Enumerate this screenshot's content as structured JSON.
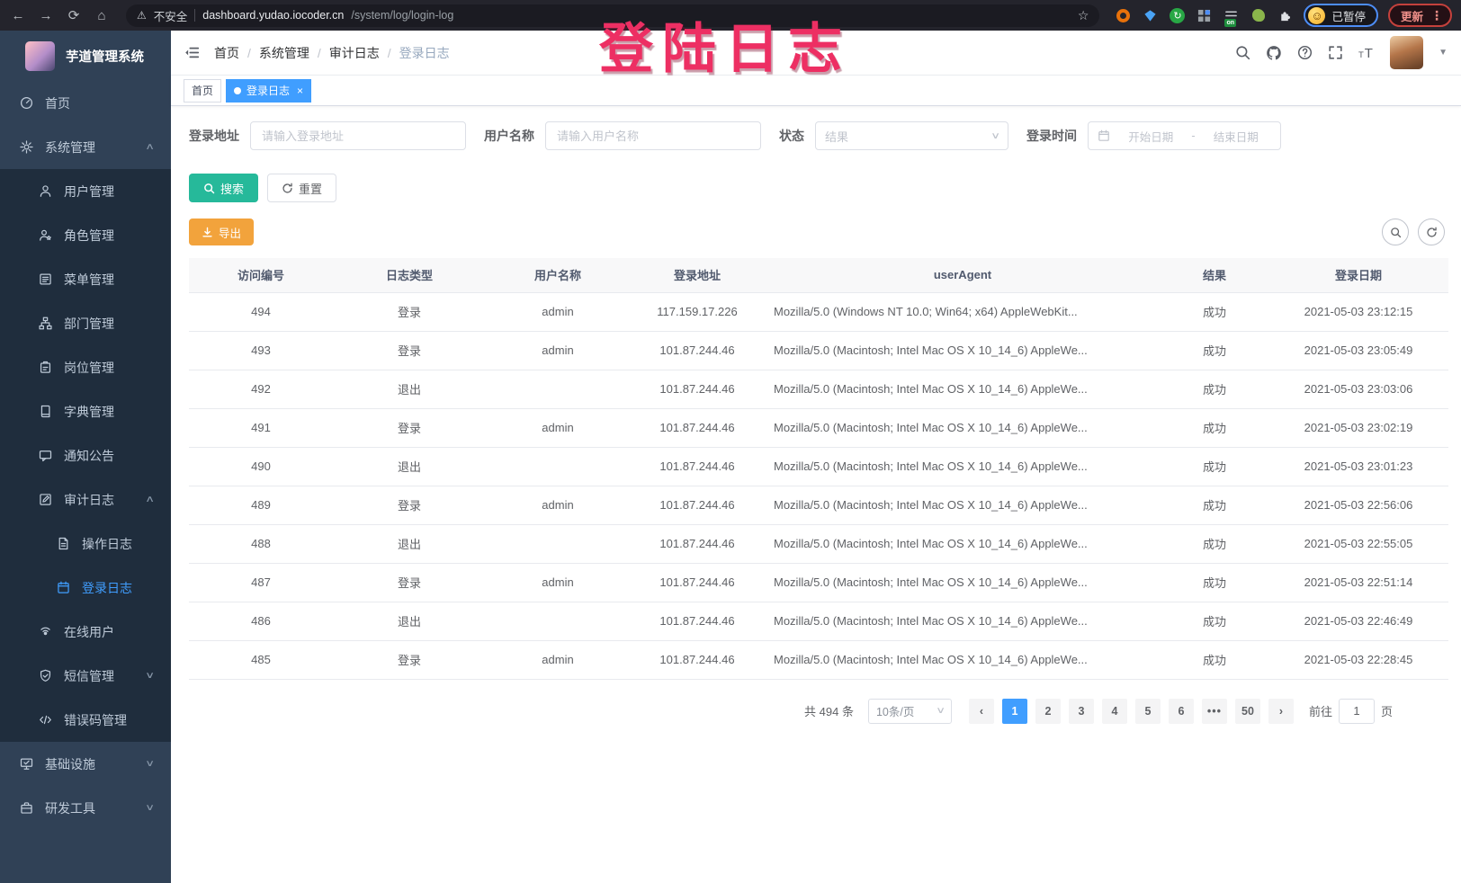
{
  "colors": {
    "accent": "#409eff",
    "sidebar_bg": "#304156",
    "submenu_bg": "#1f2d3d",
    "search_button": "#26b99a",
    "export_button": "#f2a33c",
    "overlay_text": "#ed2f63"
  },
  "overlay": {
    "text": "登陆日志"
  },
  "browser": {
    "security_label": "不安全",
    "url_domain": "dashboard.yudao.iocoder.cn",
    "url_path": "/system/log/login-log",
    "paused_label": "已暂停",
    "update_label": "更新",
    "extension_badge": "on",
    "extension_icons": [
      "orange-ring-extension-icon",
      "blue-shield-extension-icon",
      "green-circle-extension-icon",
      "grid-extension-icon",
      "list-on-extension-icon",
      "green-leaf-extension-icon",
      "puzzle-extensions-icon"
    ]
  },
  "sidebar": {
    "title": "芋道管理系统",
    "items": [
      {
        "id": "home",
        "label": "首页",
        "icon": "dashboard-icon",
        "level": 1
      },
      {
        "id": "system",
        "label": "系统管理",
        "icon": "gear-icon",
        "level": 1,
        "caret": "up"
      },
      {
        "id": "user-mgmt",
        "label": "用户管理",
        "icon": "user-icon",
        "level": 2
      },
      {
        "id": "role-mgmt",
        "label": "角色管理",
        "icon": "role-icon",
        "level": 2
      },
      {
        "id": "menu-mgmt",
        "label": "菜单管理",
        "icon": "menu-list-icon",
        "level": 2
      },
      {
        "id": "dept-mgmt",
        "label": "部门管理",
        "icon": "org-tree-icon",
        "level": 2
      },
      {
        "id": "post-mgmt",
        "label": "岗位管理",
        "icon": "badge-icon",
        "level": 2
      },
      {
        "id": "dict-mgmt",
        "label": "字典管理",
        "icon": "dictionary-icon",
        "level": 2
      },
      {
        "id": "notice",
        "label": "通知公告",
        "icon": "announcement-icon",
        "level": 2
      },
      {
        "id": "audit-log",
        "label": "审计日志",
        "icon": "audit-log-icon",
        "level": 2,
        "caret": "up"
      },
      {
        "id": "operation-log",
        "label": "操作日志",
        "icon": "operation-log-icon",
        "level": 3
      },
      {
        "id": "login-log",
        "label": "登录日志",
        "icon": "login-log-icon",
        "level": 3,
        "active": true
      },
      {
        "id": "online-users",
        "label": "在线用户",
        "icon": "online-users-icon",
        "level": 2
      },
      {
        "id": "sms-mgmt",
        "label": "短信管理",
        "icon": "sms-shield-icon",
        "level": 2,
        "caret": "down"
      },
      {
        "id": "error-code",
        "label": "错误码管理",
        "icon": "error-code-icon",
        "level": 2
      },
      {
        "id": "infra",
        "label": "基础设施",
        "icon": "infrastructure-icon",
        "level": 1,
        "caret": "down"
      },
      {
        "id": "dev-tools",
        "label": "研发工具",
        "icon": "dev-tools-icon",
        "level": 1,
        "caret": "down"
      }
    ]
  },
  "header": {
    "breadcrumb": [
      "首页",
      "系统管理",
      "审计日志",
      "登录日志"
    ],
    "right_icons": [
      "search-icon",
      "github-icon",
      "help-icon",
      "fullscreen-icon",
      "font-size-icon"
    ]
  },
  "tabs": [
    {
      "label": "首页",
      "active": false,
      "closable": false
    },
    {
      "label": "登录日志",
      "active": true,
      "closable": true
    }
  ],
  "filters": {
    "login_address_label": "登录地址",
    "login_address_placeholder": "请输入登录地址",
    "username_label": "用户名称",
    "username_placeholder": "请输入用户名称",
    "status_label": "状态",
    "status_placeholder": "结果",
    "login_time_label": "登录时间",
    "date_start_placeholder": "开始日期",
    "date_separator": "-",
    "date_end_placeholder": "结束日期",
    "search_label": "搜索",
    "reset_label": "重置",
    "export_label": "导出"
  },
  "table": {
    "columns": [
      "访问编号",
      "日志类型",
      "用户名称",
      "登录地址",
      "userAgent",
      "结果",
      "登录日期"
    ],
    "rows": [
      [
        "494",
        "登录",
        "admin",
        "117.159.17.226",
        "Mozilla/5.0 (Windows NT 10.0; Win64; x64) AppleWebKit...",
        "成功",
        "2021-05-03 23:12:15"
      ],
      [
        "493",
        "登录",
        "admin",
        "101.87.244.46",
        "Mozilla/5.0 (Macintosh; Intel Mac OS X 10_14_6) AppleWe...",
        "成功",
        "2021-05-03 23:05:49"
      ],
      [
        "492",
        "退出",
        "",
        "101.87.244.46",
        "Mozilla/5.0 (Macintosh; Intel Mac OS X 10_14_6) AppleWe...",
        "成功",
        "2021-05-03 23:03:06"
      ],
      [
        "491",
        "登录",
        "admin",
        "101.87.244.46",
        "Mozilla/5.0 (Macintosh; Intel Mac OS X 10_14_6) AppleWe...",
        "成功",
        "2021-05-03 23:02:19"
      ],
      [
        "490",
        "退出",
        "",
        "101.87.244.46",
        "Mozilla/5.0 (Macintosh; Intel Mac OS X 10_14_6) AppleWe...",
        "成功",
        "2021-05-03 23:01:23"
      ],
      [
        "489",
        "登录",
        "admin",
        "101.87.244.46",
        "Mozilla/5.0 (Macintosh; Intel Mac OS X 10_14_6) AppleWe...",
        "成功",
        "2021-05-03 22:56:06"
      ],
      [
        "488",
        "退出",
        "",
        "101.87.244.46",
        "Mozilla/5.0 (Macintosh; Intel Mac OS X 10_14_6) AppleWe...",
        "成功",
        "2021-05-03 22:55:05"
      ],
      [
        "487",
        "登录",
        "admin",
        "101.87.244.46",
        "Mozilla/5.0 (Macintosh; Intel Mac OS X 10_14_6) AppleWe...",
        "成功",
        "2021-05-03 22:51:14"
      ],
      [
        "486",
        "退出",
        "",
        "101.87.244.46",
        "Mozilla/5.0 (Macintosh; Intel Mac OS X 10_14_6) AppleWe...",
        "成功",
        "2021-05-03 22:46:49"
      ],
      [
        "485",
        "登录",
        "admin",
        "101.87.244.46",
        "Mozilla/5.0 (Macintosh; Intel Mac OS X 10_14_6) AppleWe...",
        "成功",
        "2021-05-03 22:28:45"
      ]
    ]
  },
  "pagination": {
    "total_label": "共 494 条",
    "page_size_label": "10条/页",
    "pages": [
      "1",
      "2",
      "3",
      "4",
      "5",
      "6",
      "•••",
      "50"
    ],
    "active_page": "1",
    "prev_icon": "‹",
    "next_icon": "›",
    "goto_label": "前往",
    "goto_value": "1",
    "goto_suffix": "页"
  }
}
